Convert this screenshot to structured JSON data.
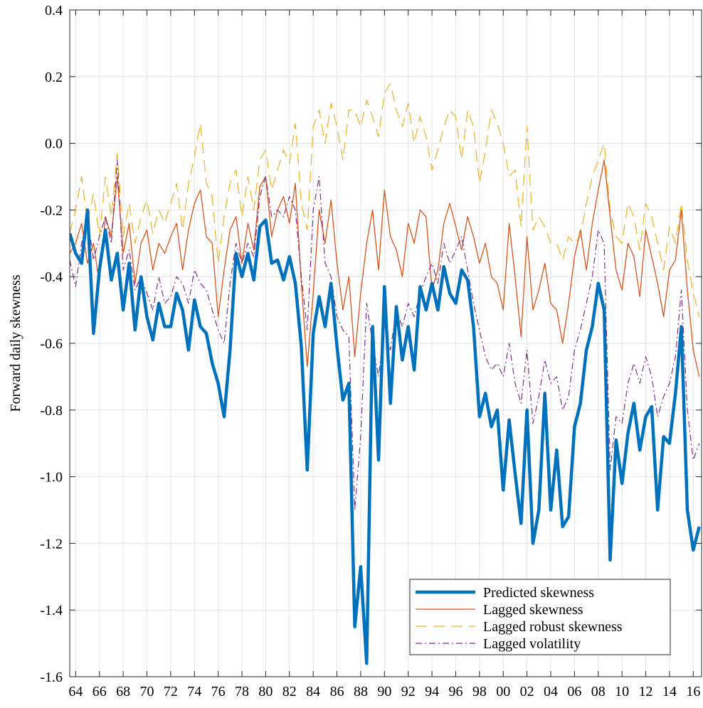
{
  "chart_data": {
    "type": "line",
    "title": "",
    "xlabel": "",
    "ylabel": "Forward daily skewness",
    "xlim": [
      1963.5,
      2016.7
    ],
    "ylim": [
      -1.6,
      0.4
    ],
    "x_tick_values": [
      1964,
      1966,
      1968,
      1970,
      1972,
      1974,
      1976,
      1978,
      1980,
      1982,
      1984,
      1986,
      1988,
      1990,
      1992,
      1994,
      1996,
      1998,
      2000,
      2002,
      2004,
      2006,
      2008,
      2010,
      2012,
      2014,
      2016
    ],
    "x_tick_labels": [
      "64",
      "66",
      "68",
      "70",
      "72",
      "74",
      "76",
      "78",
      "80",
      "82",
      "84",
      "86",
      "88",
      "90",
      "92",
      "94",
      "96",
      "98",
      "00",
      "02",
      "04",
      "06",
      "08",
      "10",
      "12",
      "14",
      "16"
    ],
    "y_tick_values": [
      -1.6,
      -1.4,
      -1.2,
      -1.0,
      -0.8,
      -0.6,
      -0.4,
      -0.2,
      0.0,
      0.2,
      0.4
    ],
    "y_tick_labels": [
      "-1.6",
      "-1.4",
      "-1.2",
      "-1.0",
      "-0.8",
      "-0.6",
      "-0.4",
      "-0.2",
      "0.0",
      "0.2",
      "0.4"
    ],
    "grid": true,
    "legend_position": "bottom-right",
    "x": [
      1963.5,
      1964,
      1964.5,
      1965,
      1965.5,
      1966,
      1966.5,
      1967,
      1967.5,
      1968,
      1968.5,
      1969,
      1969.5,
      1970,
      1970.5,
      1971,
      1971.5,
      1972,
      1972.5,
      1973,
      1973.5,
      1974,
      1974.5,
      1975,
      1975.5,
      1976,
      1976.5,
      1977,
      1977.5,
      1978,
      1978.5,
      1979,
      1979.5,
      1980,
      1980.5,
      1981,
      1981.5,
      1982,
      1982.5,
      1983,
      1983.5,
      1984,
      1984.5,
      1985,
      1985.5,
      1986,
      1986.5,
      1987,
      1987.5,
      1988,
      1988.5,
      1989,
      1989.5,
      1990,
      1990.5,
      1991,
      1991.5,
      1992,
      1992.5,
      1993,
      1993.5,
      1994,
      1994.5,
      1995,
      1995.5,
      1996,
      1996.5,
      1997,
      1997.5,
      1998,
      1998.5,
      1999,
      1999.5,
      2000,
      2000.5,
      2001,
      2001.5,
      2002,
      2002.5,
      2003,
      2003.5,
      2004,
      2004.5,
      2005,
      2005.5,
      2006,
      2006.5,
      2007,
      2007.5,
      2008,
      2008.5,
      2009,
      2009.5,
      2010,
      2010.5,
      2011,
      2011.5,
      2012,
      2012.5,
      2013,
      2013.5,
      2014,
      2014.5,
      2015,
      2015.5,
      2016,
      2016.5
    ],
    "series": [
      {
        "name": "Predicted skewness",
        "color": "#0072BD",
        "style": "solid",
        "width": 4.5,
        "values": [
          -0.27,
          -0.33,
          -0.36,
          -0.2,
          -0.57,
          -0.38,
          -0.26,
          -0.41,
          -0.33,
          -0.5,
          -0.36,
          -0.56,
          -0.4,
          -0.52,
          -0.59,
          -0.48,
          -0.55,
          -0.55,
          -0.45,
          -0.5,
          -0.62,
          -0.47,
          -0.55,
          -0.57,
          -0.66,
          -0.72,
          -0.82,
          -0.62,
          -0.33,
          -0.4,
          -0.33,
          -0.41,
          -0.25,
          -0.23,
          -0.36,
          -0.35,
          -0.41,
          -0.34,
          -0.42,
          -0.61,
          -0.98,
          -0.57,
          -0.46,
          -0.55,
          -0.42,
          -0.61,
          -0.77,
          -0.72,
          -1.45,
          -1.27,
          -1.56,
          -0.55,
          -0.95,
          -0.43,
          -0.78,
          -0.49,
          -0.65,
          -0.55,
          -0.68,
          -0.43,
          -0.5,
          -0.42,
          -0.5,
          -0.37,
          -0.45,
          -0.48,
          -0.38,
          -0.41,
          -0.55,
          -0.82,
          -0.75,
          -0.85,
          -0.8,
          -1.04,
          -0.83,
          -0.99,
          -1.14,
          -0.8,
          -1.2,
          -1.1,
          -0.75,
          -1.1,
          -0.92,
          -1.15,
          -1.12,
          -0.85,
          -0.78,
          -0.62,
          -0.55,
          -0.42,
          -0.5,
          -1.25,
          -0.89,
          -1.02,
          -0.87,
          -0.78,
          -0.92,
          -0.82,
          -0.79,
          -1.1,
          -0.88,
          -0.9,
          -0.75,
          -0.55,
          -1.1,
          -1.22,
          -1.15
        ]
      },
      {
        "name": "Lagged skewness",
        "color": "#D95319",
        "style": "solid",
        "width": 1.3,
        "values": [
          -0.33,
          -0.3,
          -0.24,
          -0.36,
          -0.3,
          -0.42,
          -0.22,
          -0.28,
          -0.1,
          -0.33,
          -0.24,
          -0.42,
          -0.3,
          -0.26,
          -0.38,
          -0.3,
          -0.33,
          -0.28,
          -0.24,
          -0.38,
          -0.26,
          -0.18,
          -0.14,
          -0.28,
          -0.3,
          -0.52,
          -0.38,
          -0.26,
          -0.22,
          -0.36,
          -0.24,
          -0.32,
          -0.13,
          -0.1,
          -0.28,
          -0.2,
          -0.16,
          -0.24,
          -0.12,
          -0.42,
          -0.67,
          -0.45,
          -0.2,
          -0.3,
          -0.17,
          -0.36,
          -0.5,
          -0.4,
          -0.64,
          -0.45,
          -0.3,
          -0.2,
          -0.38,
          -0.14,
          -0.28,
          -0.32,
          -0.4,
          -0.24,
          -0.3,
          -0.2,
          -0.22,
          -0.44,
          -0.38,
          -0.24,
          -0.18,
          -0.25,
          -0.32,
          -0.22,
          -0.28,
          -0.36,
          -0.3,
          -0.4,
          -0.42,
          -0.5,
          -0.24,
          -0.4,
          -0.58,
          -0.28,
          -0.5,
          -0.44,
          -0.36,
          -0.48,
          -0.5,
          -0.6,
          -0.48,
          -0.34,
          -0.26,
          -0.38,
          -0.24,
          -0.14,
          -0.05,
          -0.22,
          -0.38,
          -0.44,
          -0.3,
          -0.34,
          -0.46,
          -0.26,
          -0.34,
          -0.42,
          -0.52,
          -0.38,
          -0.35,
          -0.2,
          -0.44,
          -0.62,
          -0.7
        ]
      },
      {
        "name": "Lagged robust skewness",
        "color": "#EDB120",
        "style": "dashed",
        "width": 1.2,
        "values": [
          -0.27,
          -0.2,
          -0.1,
          -0.24,
          -0.15,
          -0.28,
          -0.1,
          -0.22,
          -0.03,
          -0.28,
          -0.18,
          -0.3,
          -0.22,
          -0.17,
          -0.27,
          -0.2,
          -0.24,
          -0.18,
          -0.12,
          -0.26,
          -0.12,
          -0.04,
          0.06,
          -0.12,
          -0.16,
          -0.36,
          -0.22,
          -0.12,
          -0.08,
          -0.22,
          -0.1,
          -0.2,
          -0.05,
          -0.02,
          -0.14,
          -0.08,
          -0.02,
          -0.06,
          0.06,
          -0.18,
          -0.26,
          0.05,
          0.1,
          0.0,
          0.12,
          0.05,
          -0.05,
          0.1,
          0.1,
          0.05,
          0.13,
          0.08,
          0.02,
          0.15,
          0.18,
          0.1,
          0.05,
          0.12,
          0.0,
          0.08,
          0.02,
          -0.08,
          -0.02,
          0.05,
          0.1,
          0.08,
          -0.05,
          0.1,
          0.05,
          -0.12,
          -0.02,
          0.1,
          0.06,
          0.0,
          -0.1,
          -0.08,
          -0.25,
          0.05,
          -0.26,
          -0.22,
          -0.25,
          -0.3,
          -0.3,
          -0.35,
          -0.28,
          -0.3,
          -0.28,
          -0.18,
          -0.1,
          -0.05,
          0.0,
          -0.2,
          -0.28,
          -0.3,
          -0.18,
          -0.22,
          -0.32,
          -0.18,
          -0.22,
          -0.3,
          -0.38,
          -0.25,
          -0.3,
          -0.18,
          -0.35,
          -0.45,
          -0.52
        ]
      },
      {
        "name": "Lagged volatility",
        "color": "#7E2F8E",
        "style": "dashdot",
        "width": 1.2,
        "values": [
          -0.35,
          -0.43,
          -0.3,
          -0.22,
          -0.35,
          -0.28,
          -0.22,
          -0.3,
          -0.05,
          -0.38,
          -0.32,
          -0.44,
          -0.4,
          -0.45,
          -0.5,
          -0.4,
          -0.48,
          -0.46,
          -0.4,
          -0.42,
          -0.48,
          -0.38,
          -0.42,
          -0.44,
          -0.5,
          -0.56,
          -0.6,
          -0.42,
          -0.3,
          -0.36,
          -0.3,
          -0.34,
          -0.16,
          -0.1,
          -0.22,
          -0.2,
          -0.22,
          -0.16,
          -0.2,
          -0.4,
          -0.56,
          -0.2,
          -0.1,
          -0.36,
          -0.4,
          -0.52,
          -0.56,
          -0.58,
          -1.1,
          -0.88,
          -0.48,
          -0.6,
          -0.7,
          -0.55,
          -0.62,
          -0.5,
          -0.55,
          -0.48,
          -0.52,
          -0.45,
          -0.4,
          -0.36,
          -0.42,
          -0.3,
          -0.36,
          -0.32,
          -0.28,
          -0.38,
          -0.48,
          -0.56,
          -0.64,
          -0.68,
          -0.66,
          -0.7,
          -0.6,
          -0.72,
          -0.78,
          -0.62,
          -0.84,
          -0.76,
          -0.65,
          -0.72,
          -0.7,
          -0.8,
          -0.76,
          -0.62,
          -0.56,
          -0.48,
          -0.4,
          -0.26,
          -0.3,
          -0.98,
          -0.82,
          -0.84,
          -0.72,
          -0.66,
          -0.72,
          -0.64,
          -0.7,
          -0.82,
          -0.76,
          -0.72,
          -0.64,
          -0.44,
          -0.8,
          -0.95,
          -0.9
        ]
      }
    ]
  }
}
